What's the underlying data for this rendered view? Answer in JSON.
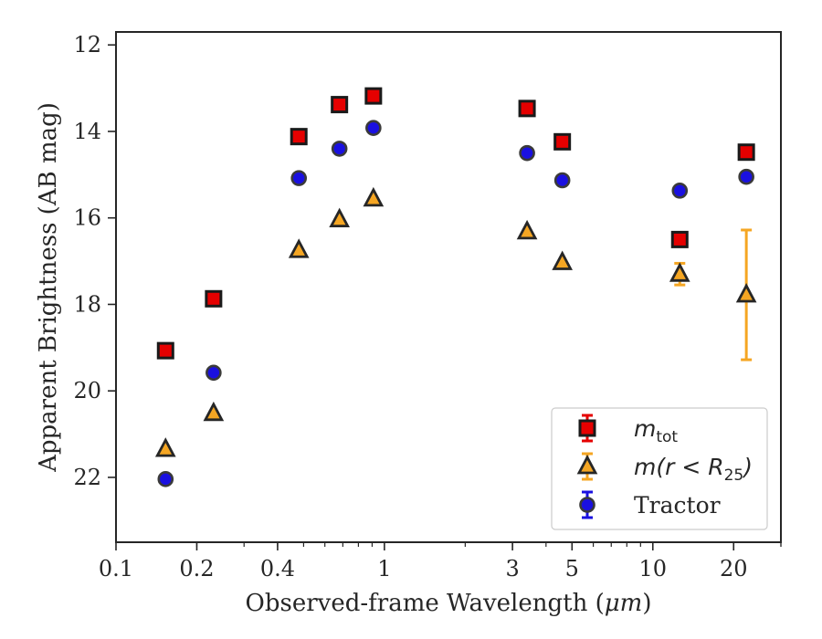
{
  "chart_data": {
    "type": "scatter",
    "xscale": "log",
    "yaxis_inverted": true,
    "xlabel_prefix": "Observed-frame Wavelength (",
    "xlabel_unit": "μm",
    "xlabel_suffix": ")",
    "ylabel": "Apparent Brightness (AB mag)",
    "xlim": [
      0.1,
      30
    ],
    "ylim": [
      23.5,
      11.7
    ],
    "x_ticks": [
      0.1,
      0.2,
      0.4,
      1,
      3,
      5,
      10,
      20
    ],
    "x_tick_labels": [
      "0.1",
      "0.2",
      "0.4",
      "1",
      "3",
      "5",
      "10",
      "20"
    ],
    "y_ticks": [
      12,
      14,
      16,
      18,
      20,
      22
    ],
    "y_tick_labels": [
      "12",
      "14",
      "16",
      "18",
      "20",
      "22"
    ],
    "grid": false,
    "legend_position": "lower right",
    "series": [
      {
        "name": "m_tot",
        "legend_main": "m",
        "legend_sub": "tot",
        "marker": "square",
        "color": "#e50000",
        "edgecolor": "#1a1a1a",
        "errorcolor": "#e50000",
        "points": [
          {
            "x": 0.153,
            "y": 19.07
          },
          {
            "x": 0.231,
            "y": 17.87
          },
          {
            "x": 0.48,
            "y": 14.12
          },
          {
            "x": 0.68,
            "y": 13.38
          },
          {
            "x": 0.91,
            "y": 13.18
          },
          {
            "x": 3.4,
            "y": 13.47
          },
          {
            "x": 4.6,
            "y": 14.24
          },
          {
            "x": 12.6,
            "y": 16.5
          },
          {
            "x": 22.3,
            "y": 14.48
          }
        ]
      },
      {
        "name": "m(r < R25)",
        "legend_main": "m(r < R",
        "legend_sub": "25",
        "legend_tail": ")",
        "marker": "triangle",
        "color": "#f5a623",
        "edgecolor": "#262626",
        "errorcolor": "#f5a623",
        "points": [
          {
            "x": 0.153,
            "y": 21.35
          },
          {
            "x": 0.231,
            "y": 20.52
          },
          {
            "x": 0.48,
            "y": 16.75
          },
          {
            "x": 0.68,
            "y": 16.04
          },
          {
            "x": 0.91,
            "y": 15.56
          },
          {
            "x": 3.4,
            "y": 16.32
          },
          {
            "x": 4.6,
            "y": 17.03
          },
          {
            "x": 12.6,
            "y": 17.3,
            "err": 0.25
          },
          {
            "x": 22.3,
            "y": 17.78,
            "err": 1.5
          }
        ]
      },
      {
        "name": "Tractor",
        "legend_main": "Tractor",
        "marker": "circle",
        "color": "#1a10e0",
        "edgecolor": "#3a3a3a",
        "errorcolor": "#1a10e0",
        "points": [
          {
            "x": 0.153,
            "y": 22.04
          },
          {
            "x": 0.231,
            "y": 19.58
          },
          {
            "x": 0.48,
            "y": 15.08
          },
          {
            "x": 0.68,
            "y": 14.4
          },
          {
            "x": 0.91,
            "y": 13.92
          },
          {
            "x": 3.4,
            "y": 14.5
          },
          {
            "x": 4.6,
            "y": 15.13
          },
          {
            "x": 12.6,
            "y": 15.37
          },
          {
            "x": 22.3,
            "y": 15.05
          }
        ]
      }
    ]
  }
}
